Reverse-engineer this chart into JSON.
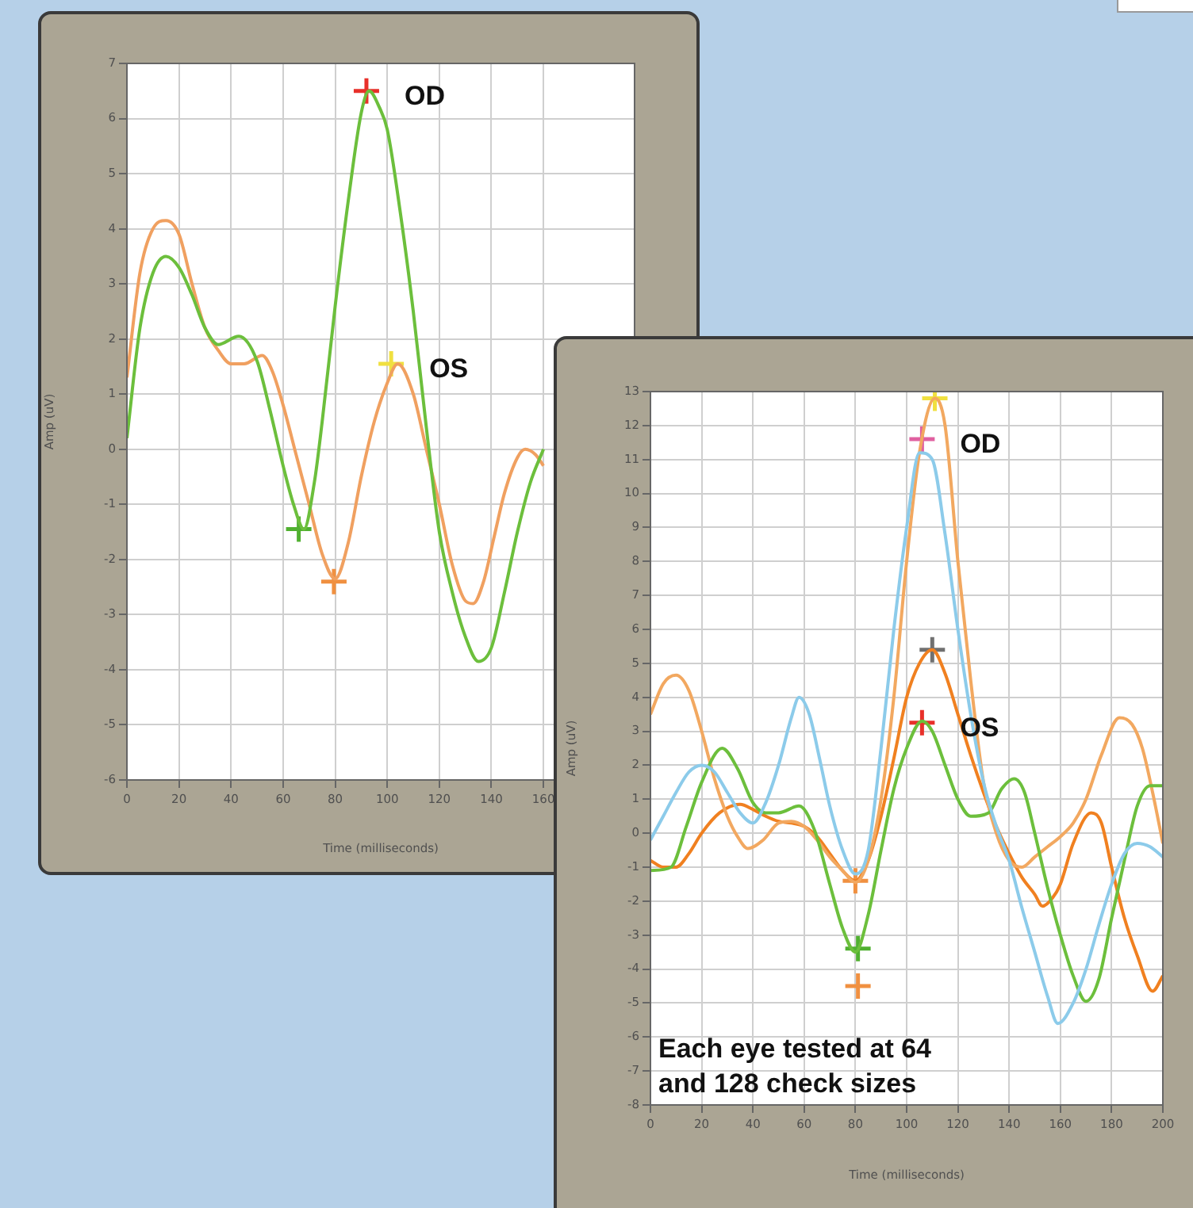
{
  "chart_data": [
    {
      "type": "line",
      "xlabel": "Time (milliseconds)",
      "ylabel": "Amp (uV)",
      "xlim": [
        0,
        195
      ],
      "ylim": [
        -6,
        7
      ],
      "xticks": [
        0,
        20,
        40,
        60,
        80,
        100,
        120,
        140,
        160
      ],
      "yticks": [
        -6,
        -5,
        -4,
        -3,
        -2,
        -1,
        0,
        1,
        2,
        3,
        4,
        5,
        6,
        7
      ],
      "grid": true,
      "series": [
        {
          "color": "#6cbf3c",
          "marker": "none",
          "x": [
            0,
            5,
            10,
            15,
            20,
            25,
            30,
            35,
            43,
            50,
            55,
            60,
            64,
            68,
            72,
            75,
            80,
            85,
            90,
            93,
            97,
            100,
            105,
            110,
            115,
            120,
            125,
            130,
            135,
            140,
            145,
            150,
            155,
            160
          ],
          "values": [
            0.2,
            2.2,
            3.2,
            3.5,
            3.3,
            2.8,
            2.2,
            1.9,
            2.05,
            1.6,
            0.7,
            -0.3,
            -1.0,
            -1.45,
            -0.6,
            0.5,
            2.6,
            4.5,
            6.1,
            6.5,
            6.2,
            5.8,
            4.3,
            2.5,
            0.4,
            -1.5,
            -2.6,
            -3.4,
            -3.85,
            -3.6,
            -2.6,
            -1.5,
            -0.6,
            0.0
          ]
        },
        {
          "color": "#f0a060",
          "marker": "none",
          "x": [
            0,
            5,
            10,
            15,
            20,
            25,
            30,
            35,
            40,
            45,
            52,
            56,
            60,
            65,
            70,
            75,
            80,
            85,
            90,
            95,
            100,
            104,
            110,
            115,
            120,
            125,
            130,
            133,
            137,
            141,
            145,
            150,
            153,
            157,
            160
          ],
          "values": [
            1.3,
            3.2,
            4.0,
            4.15,
            3.9,
            3.0,
            2.2,
            1.8,
            1.55,
            1.55,
            1.7,
            1.4,
            0.8,
            -0.1,
            -1.0,
            -1.9,
            -2.35,
            -1.7,
            -0.5,
            0.5,
            1.2,
            1.55,
            1.0,
            0.0,
            -1.0,
            -2.1,
            -2.75,
            -2.8,
            -2.4,
            -1.6,
            -0.8,
            -0.15,
            0.0,
            -0.1,
            -0.3
          ]
        },
        {
          "type": "scatter",
          "color": "#e8302a",
          "marker": "cross",
          "x": [
            92
          ],
          "values": [
            6.5
          ]
        },
        {
          "type": "scatter",
          "color": "#50b030",
          "marker": "cross",
          "x": [
            66
          ],
          "values": [
            -1.45
          ]
        },
        {
          "type": "scatter",
          "color": "#f0e040",
          "marker": "cross",
          "x": [
            101.5
          ],
          "values": [
            1.55
          ]
        },
        {
          "type": "scatter",
          "color": "#f09040",
          "marker": "cross",
          "x": [
            79.5
          ],
          "values": [
            -2.4
          ]
        }
      ],
      "annotations": [
        {
          "text": "OD",
          "x": 92,
          "y": 6.5
        },
        {
          "text": "OS",
          "x": 101.5,
          "y": 1.55
        }
      ]
    },
    {
      "type": "line",
      "xlabel": "Time (milliseconds)",
      "ylabel": "Amp (uV)",
      "xlim": [
        0,
        200
      ],
      "ylim": [
        -8,
        13
      ],
      "xticks": [
        0,
        20,
        40,
        60,
        80,
        100,
        120,
        140,
        160,
        180,
        200
      ],
      "yticks": [
        -8,
        -7,
        -6,
        -5,
        -4,
        -3,
        -2,
        -1,
        0,
        1,
        2,
        3,
        4,
        5,
        6,
        7,
        8,
        9,
        10,
        11,
        12,
        13
      ],
      "grid": true,
      "series": [
        {
          "color": "#8ccbea",
          "marker": "none",
          "x": [
            0,
            5,
            10,
            15,
            20,
            25,
            30,
            35,
            40,
            45,
            50,
            55,
            58,
            62,
            66,
            70,
            75,
            80,
            85,
            90,
            95,
            100,
            105,
            110,
            115,
            120,
            125,
            130,
            135,
            140,
            145,
            150,
            155,
            159,
            165,
            170,
            175,
            180,
            185,
            190,
            195,
            200
          ],
          "values": [
            -0.2,
            0.5,
            1.2,
            1.8,
            2.0,
            1.8,
            1.2,
            0.6,
            0.3,
            0.9,
            2.0,
            3.4,
            4.0,
            3.5,
            2.2,
            0.8,
            -0.5,
            -1.2,
            -0.5,
            2.5,
            6.0,
            9.0,
            11.2,
            11.0,
            8.8,
            6.0,
            3.5,
            1.5,
            0.2,
            -0.8,
            -2.2,
            -3.5,
            -4.8,
            -5.6,
            -5.0,
            -4.0,
            -2.7,
            -1.5,
            -0.6,
            -0.3,
            -0.4,
            -0.7
          ]
        },
        {
          "color": "#6cbf3c",
          "marker": "none",
          "x": [
            0,
            8,
            14,
            20,
            28,
            34,
            40,
            45,
            50,
            58,
            64,
            70,
            75,
            80,
            85,
            90,
            95,
            100,
            106,
            110,
            115,
            120,
            125,
            132,
            137,
            142,
            146,
            150,
            155,
            160,
            165,
            170,
            175,
            180,
            185,
            190,
            195,
            200
          ],
          "values": [
            -1.1,
            -1.0,
            0.2,
            1.5,
            2.5,
            1.9,
            0.9,
            0.6,
            0.6,
            0.8,
            0.1,
            -1.5,
            -2.8,
            -3.5,
            -2.4,
            -0.5,
            1.3,
            2.5,
            3.3,
            3.0,
            2.0,
            1.0,
            0.5,
            0.6,
            1.3,
            1.6,
            1.2,
            0.0,
            -1.6,
            -3.0,
            -4.2,
            -4.95,
            -4.3,
            -2.5,
            -0.8,
            0.8,
            1.4,
            1.4
          ]
        },
        {
          "color": "#f2a860",
          "marker": "none",
          "x": [
            0,
            5,
            10,
            15,
            20,
            25,
            30,
            34,
            38,
            44,
            50,
            55,
            60,
            65,
            70,
            75,
            80,
            85,
            90,
            95,
            100,
            105,
            111,
            115,
            120,
            125,
            130,
            135,
            140,
            145,
            150,
            155,
            160,
            165,
            170,
            176,
            183,
            188,
            192,
            196,
            200
          ],
          "values": [
            3.5,
            4.4,
            4.65,
            4.2,
            3.0,
            1.6,
            0.5,
            -0.1,
            -0.45,
            -0.2,
            0.3,
            0.35,
            0.2,
            -0.2,
            -0.7,
            -1.1,
            -1.45,
            -0.8,
            1.0,
            4.0,
            8.0,
            11.2,
            12.8,
            12.0,
            8.0,
            4.5,
            1.5,
            0.0,
            -0.8,
            -1.0,
            -0.7,
            -0.4,
            -0.1,
            0.3,
            1.0,
            2.3,
            3.4,
            3.2,
            2.5,
            1.2,
            -0.3
          ]
        },
        {
          "color": "#f08020",
          "marker": "none",
          "x": [
            0,
            5,
            10,
            15,
            20,
            27,
            35,
            40,
            45,
            50,
            55,
            60,
            65,
            70,
            75,
            80,
            85,
            90,
            95,
            100,
            105,
            110,
            115,
            120,
            125,
            130,
            135,
            140,
            145,
            150,
            153,
            157,
            160,
            165,
            172,
            176,
            180,
            185,
            190,
            196,
            200
          ],
          "values": [
            -0.8,
            -1.0,
            -1.0,
            -0.6,
            0.0,
            0.6,
            0.85,
            0.7,
            0.5,
            0.35,
            0.3,
            0.2,
            -0.1,
            -0.6,
            -1.1,
            -1.4,
            -0.8,
            0.5,
            2.2,
            4.0,
            5.0,
            5.4,
            4.7,
            3.5,
            2.3,
            1.2,
            0.2,
            -0.6,
            -1.3,
            -1.8,
            -2.15,
            -1.9,
            -1.5,
            -0.3,
            0.6,
            0.3,
            -1.0,
            -2.5,
            -3.6,
            -4.65,
            -4.2
          ]
        },
        {
          "type": "scatter",
          "color": "#e060a0",
          "marker": "cross",
          "x": [
            106
          ],
          "values": [
            11.6
          ]
        },
        {
          "type": "scatter",
          "color": "#f0e040",
          "marker": "cross",
          "x": [
            111
          ],
          "values": [
            12.8
          ]
        },
        {
          "type": "scatter",
          "color": "#707070",
          "marker": "cross",
          "x": [
            110
          ],
          "values": [
            5.4
          ]
        },
        {
          "type": "scatter",
          "color": "#e8302a",
          "marker": "cross",
          "x": [
            106
          ],
          "values": [
            3.25
          ]
        },
        {
          "type": "scatter",
          "color": "#f09040",
          "marker": "cross",
          "x": [
            80
          ],
          "values": [
            -1.4
          ]
        },
        {
          "type": "scatter",
          "color": "#50b030",
          "marker": "cross",
          "x": [
            81
          ],
          "values": [
            -3.4
          ]
        },
        {
          "type": "scatter",
          "color": "#f09040",
          "marker": "cross",
          "x": [
            81
          ],
          "values": [
            -4.5
          ]
        }
      ],
      "annotations": [
        {
          "text": "OD",
          "x": 106,
          "y": 11.6
        },
        {
          "text": "OS",
          "x": 106,
          "y": 3.25
        },
        "Each eye tested at 64 and 128 check sizes"
      ]
    }
  ]
}
